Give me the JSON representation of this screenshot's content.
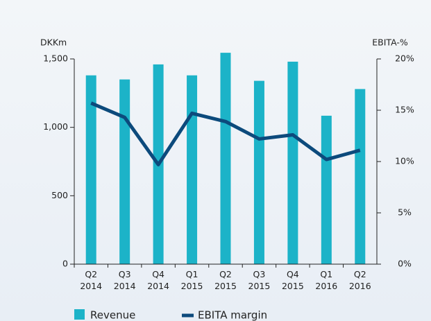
{
  "chart_data": {
    "type": "bar_line",
    "y_label": "DKKm",
    "y2_label": "EBITA-%",
    "categories": [
      "Q2 2014",
      "Q3 2014",
      "Q4 2014",
      "Q1 2015",
      "Q2 2015",
      "Q3 2015",
      "Q4 2015",
      "Q1 2016",
      "Q2 2016"
    ],
    "series": [
      {
        "name": "Revenue",
        "type": "bar",
        "color": "#1cb3c8",
        "values": [
          1380,
          1350,
          1460,
          1380,
          1545,
          1340,
          1480,
          1085,
          1280
        ]
      },
      {
        "name": "EBITA margin",
        "type": "line",
        "axis": "y2",
        "color": "#0c4a7c",
        "values": [
          15.7,
          14.3,
          9.7,
          14.7,
          13.9,
          12.2,
          12.6,
          10.2,
          11.1
        ]
      }
    ],
    "ylim": [
      0,
      1500
    ],
    "yticks": [
      0,
      500,
      {
        "value": 1000,
        "label": "1,000"
      },
      {
        "value": 1500,
        "label": "1,500"
      }
    ],
    "y2lim": [
      0,
      20
    ],
    "y2ticks": [
      {
        "value": 0,
        "label": "0%"
      },
      {
        "value": 5,
        "label": "5%"
      },
      {
        "value": 10,
        "label": "10%"
      },
      {
        "value": 15,
        "label": "15%"
      },
      {
        "value": 20,
        "label": "20%"
      }
    ]
  }
}
